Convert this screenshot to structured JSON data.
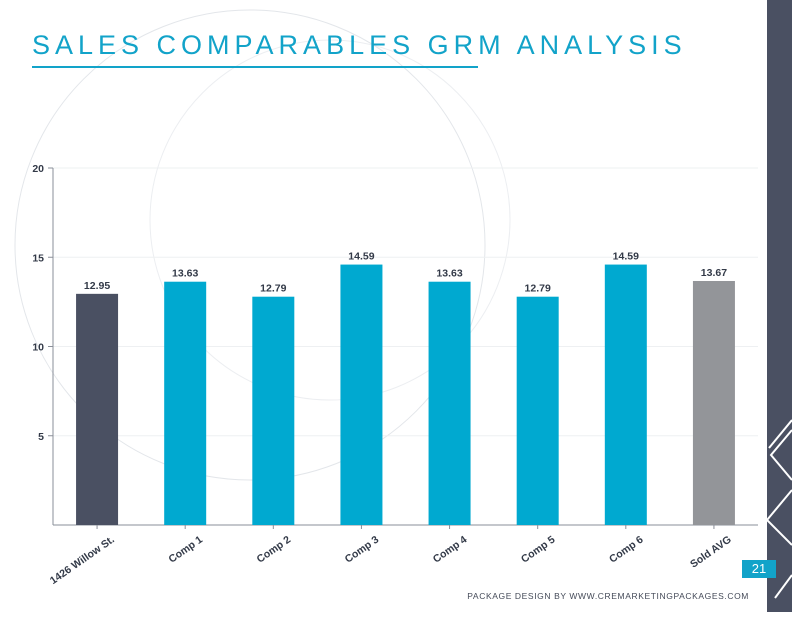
{
  "page": {
    "title": "SALES COMPARABLES GRM ANALYSIS",
    "page_number": "21",
    "footer": "PACKAGE DESIGN BY WWW.CREMARKETINGPACKAGES.COM"
  },
  "colors": {
    "accent": "#12a3c9",
    "subject_bar": "#4a5062",
    "comp_bar": "#00a9d0",
    "avg_bar": "#939599",
    "sidebar": "#4a5062"
  },
  "chart_data": {
    "type": "bar",
    "categories": [
      "1426 Willow St.",
      "Comp 1",
      "Comp 2",
      "Comp 3",
      "Comp 4",
      "Comp 5",
      "Comp 6",
      "Sold AVG"
    ],
    "values": [
      12.95,
      13.63,
      12.79,
      14.59,
      13.63,
      12.79,
      14.59,
      13.67
    ],
    "value_labels": [
      "12.95",
      "13.63",
      "12.79",
      "14.59",
      "13.63",
      "12.79",
      "14.59",
      "13.67"
    ],
    "bar_colors": [
      "#4a5062",
      "#00a9d0",
      "#00a9d0",
      "#00a9d0",
      "#00a9d0",
      "#00a9d0",
      "#00a9d0",
      "#939599"
    ],
    "ylim": [
      0,
      20
    ],
    "yticks": [
      5,
      10,
      15,
      20
    ],
    "title": "",
    "xlabel": "",
    "ylabel": "",
    "grid": true,
    "legend": "none"
  }
}
